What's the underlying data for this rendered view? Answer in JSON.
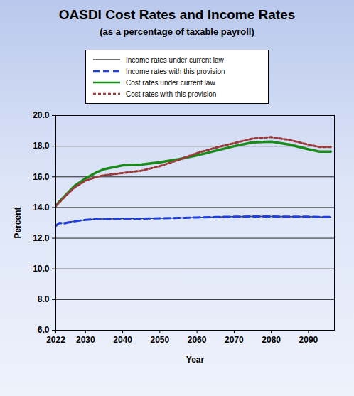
{
  "chart_data": {
    "type": "line",
    "title": "OASDI Cost Rates and Income Rates",
    "subtitle": "(as a percentage of taxable payroll)",
    "x_label": "Year",
    "y_label": "Percent",
    "x": [
      2022,
      2023,
      2024,
      2025,
      2027,
      2030,
      2033,
      2035,
      2040,
      2045,
      2050,
      2055,
      2060,
      2065,
      2070,
      2075,
      2080,
      2085,
      2090,
      2093,
      2096
    ],
    "series": [
      {
        "name": "Income rates under current law",
        "color": "#404040",
        "line_style": "solid",
        "values": [
          12.8,
          13.0,
          13.0,
          13.05,
          13.1,
          13.2,
          13.25,
          13.25,
          13.28,
          13.28,
          13.3,
          13.32,
          13.35,
          13.38,
          13.4,
          13.42,
          13.42,
          13.4,
          13.4,
          13.38,
          13.38
        ]
      },
      {
        "name": "Income rates with this provision",
        "color": "#1f3fe0",
        "line_style": "dashed",
        "values": [
          12.8,
          13.0,
          12.95,
          13.0,
          13.1,
          13.2,
          13.25,
          13.25,
          13.28,
          13.28,
          13.3,
          13.32,
          13.35,
          13.38,
          13.4,
          13.42,
          13.42,
          13.4,
          13.4,
          13.38,
          13.38
        ]
      },
      {
        "name": "Cost rates under current law",
        "color": "#1a8a1a",
        "line_style": "solid",
        "values": [
          14.1,
          14.4,
          14.65,
          14.9,
          15.4,
          15.9,
          16.3,
          16.5,
          16.75,
          16.8,
          16.95,
          17.15,
          17.4,
          17.7,
          18.0,
          18.25,
          18.3,
          18.1,
          17.8,
          17.65,
          17.65
        ]
      },
      {
        "name": "Cost rates with this provision",
        "color": "#9b3a3a",
        "line_style": "dotted",
        "values": [
          14.1,
          14.35,
          14.6,
          14.85,
          15.3,
          15.75,
          16.0,
          16.1,
          16.25,
          16.4,
          16.7,
          17.1,
          17.55,
          17.9,
          18.2,
          18.5,
          18.6,
          18.4,
          18.1,
          17.95,
          17.95
        ]
      }
    ],
    "xlim": [
      2022,
      2097
    ],
    "xticks": [
      2022,
      2030,
      2040,
      2050,
      2060,
      2070,
      2080,
      2090
    ],
    "ylim": [
      6,
      20
    ],
    "yticks": [
      {
        "value": 6,
        "label": "6.0"
      },
      {
        "value": 8,
        "label": "8.0"
      },
      {
        "value": 10,
        "label": "10.0"
      },
      {
        "value": 12,
        "label": "12.0"
      },
      {
        "value": 14,
        "label": "14.0"
      },
      {
        "value": 16,
        "label": "16.0"
      },
      {
        "value": 18,
        "label": "18.0"
      },
      {
        "value": 20,
        "label": "20.0"
      }
    ],
    "grid": true,
    "legend": "top"
  }
}
